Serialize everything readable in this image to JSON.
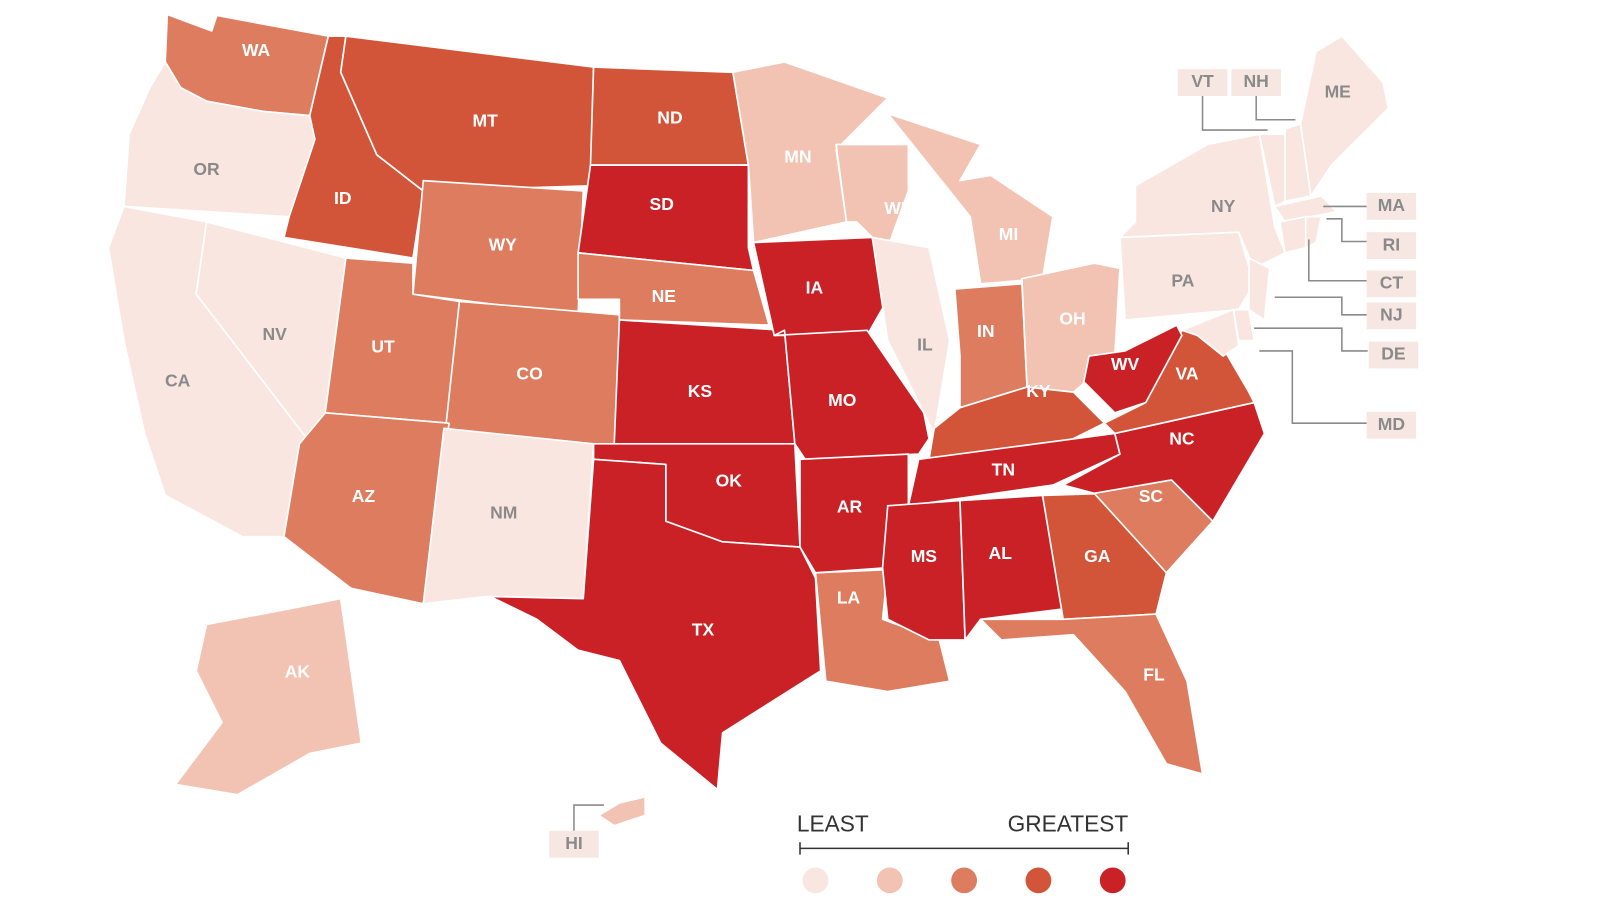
{
  "states": [
    {
      "label": "WA",
      "color": "#de7c5f"
    },
    {
      "label": "OR",
      "color": "#f9e6e0"
    },
    {
      "label": "CA",
      "color": "#f9e6e0"
    },
    {
      "label": "NV",
      "color": "#f9e6e0"
    },
    {
      "label": "ID",
      "color": "#d2553a"
    },
    {
      "label": "MT",
      "color": "#d2553a"
    },
    {
      "label": "WY",
      "color": "#de7c5f"
    },
    {
      "label": "UT",
      "color": "#de7c5f"
    },
    {
      "label": "CO",
      "color": "#de7c5f"
    },
    {
      "label": "AZ",
      "color": "#de7c5f"
    },
    {
      "label": "NM",
      "color": "#f9e6e0"
    },
    {
      "label": "ND",
      "color": "#d2553a"
    },
    {
      "label": "SD",
      "color": "#c92126"
    },
    {
      "label": "NE",
      "color": "#de7c5f"
    },
    {
      "label": "KS",
      "color": "#c92126"
    },
    {
      "label": "OK",
      "color": "#c92126"
    },
    {
      "label": "TX",
      "color": "#c92126"
    },
    {
      "label": "MN",
      "color": "#f2c3b2"
    },
    {
      "label": "IA",
      "color": "#c92126"
    },
    {
      "label": "MO",
      "color": "#c92126"
    },
    {
      "label": "AR",
      "color": "#c92126"
    },
    {
      "label": "LA",
      "color": "#de7c5f"
    },
    {
      "label": "WI",
      "color": "#f2c3b2"
    },
    {
      "label": "IL",
      "color": "#f9e6e0"
    },
    {
      "label": "MI",
      "color": "#f2c3b2"
    },
    {
      "label": "IN",
      "color": "#de7c5f"
    },
    {
      "label": "OH",
      "color": "#f2c3b2"
    },
    {
      "label": "KY",
      "color": "#d2553a"
    },
    {
      "label": "TN",
      "color": "#c92126"
    },
    {
      "label": "MS",
      "color": "#c92126"
    },
    {
      "label": "AL",
      "color": "#c92126"
    },
    {
      "label": "GA",
      "color": "#d2553a"
    },
    {
      "label": "FL",
      "color": "#de7c5f"
    },
    {
      "label": "SC",
      "color": "#de7c5f"
    },
    {
      "label": "NC",
      "color": "#c92126"
    },
    {
      "label": "VA",
      "color": "#d2553a"
    },
    {
      "label": "WV",
      "color": "#c92126"
    },
    {
      "label": "PA",
      "color": "#f9e6e0"
    },
    {
      "label": "NY",
      "color": "#f9e6e0"
    },
    {
      "label": "VT",
      "color": "#f9e6e0"
    },
    {
      "label": "NH",
      "color": "#f9e6e0"
    },
    {
      "label": "ME",
      "color": "#f9e6e0"
    },
    {
      "label": "MA",
      "color": "#f9e6e0"
    },
    {
      "label": "CT",
      "color": "#f9e6e0"
    },
    {
      "label": "RI",
      "color": "#f9e6e0"
    },
    {
      "label": "NJ",
      "color": "#f9e6e0"
    },
    {
      "label": "DE",
      "color": "#f9e6e0"
    },
    {
      "label": "MD",
      "color": "#f9e6e0"
    },
    {
      "label": "AK",
      "color": "#f2c3b2"
    },
    {
      "label": "HI",
      "color": "#f2c3b2"
    }
  ],
  "legend": {
    "min_label": "LEAST",
    "max_label": "GREATEST",
    "colors": [
      "#f9e6e0",
      "#f2c3b2",
      "#de7c5f",
      "#d2553a",
      "#c92126"
    ]
  }
}
